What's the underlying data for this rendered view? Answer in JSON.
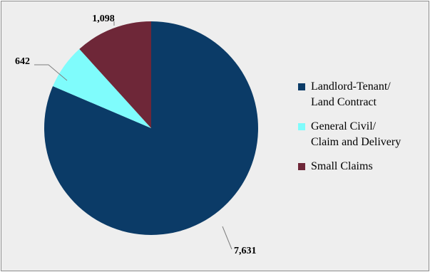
{
  "chart_data": {
    "type": "pie",
    "title": "",
    "slices": [
      {
        "label_lines": [
          "Landlord-Tenant/",
          "Land Contract"
        ],
        "value": 7631,
        "value_label": "7,631",
        "color": "#0b3b67"
      },
      {
        "label_lines": [
          "General Civil/",
          "Claim and Delivery"
        ],
        "value": 642,
        "value_label": "642",
        "color": "#7ffcfc"
      },
      {
        "label_lines": [
          "Small Claims"
        ],
        "value": 1098,
        "value_label": "1,098",
        "color": "#6e2738"
      }
    ],
    "start_angle_deg": 0,
    "direction": "clockwise",
    "legend_position": "right",
    "data_labels": "outside with leader lines"
  }
}
